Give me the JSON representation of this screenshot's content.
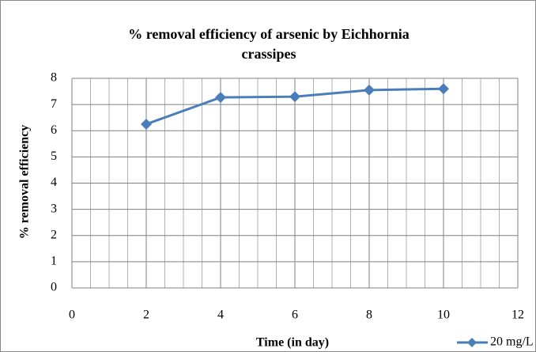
{
  "chart_data": {
    "type": "line",
    "title": "% removal efficiency of arsenic by Eichhornia crassipes",
    "x_label": "Time (in day)",
    "y_label": "% removal efficiency",
    "x": [
      2,
      4,
      6,
      8,
      10
    ],
    "series": [
      {
        "name": "20 mg/L",
        "color": "#4a7ebb",
        "values": [
          6.25,
          7.27,
          7.3,
          7.55,
          7.6
        ]
      }
    ],
    "xlim": [
      0,
      12
    ],
    "xticks": [
      0,
      2,
      4,
      6,
      8,
      10,
      12
    ],
    "ylim": [
      0,
      8
    ],
    "yticks": [
      0,
      1,
      2,
      3,
      4,
      5,
      6,
      7,
      8
    ],
    "grid": true,
    "minor_grid_step_x": 0.5,
    "legend": "bottom-right"
  }
}
